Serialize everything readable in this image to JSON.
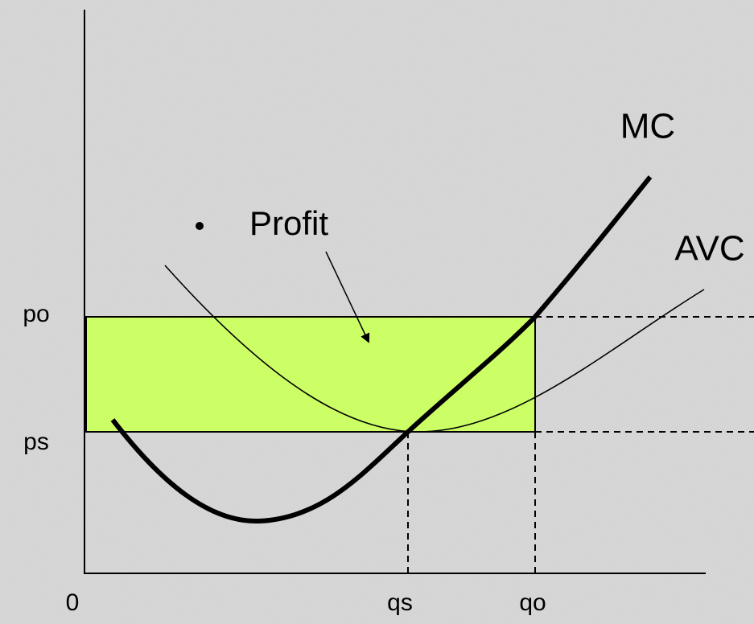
{
  "curves": {
    "mc": "MC",
    "avc": "AVC"
  },
  "profit": "Profit",
  "axis": {
    "origin": "0",
    "y_labels": [
      "po",
      "ps"
    ],
    "x_labels": [
      "qs",
      "qo"
    ]
  }
}
